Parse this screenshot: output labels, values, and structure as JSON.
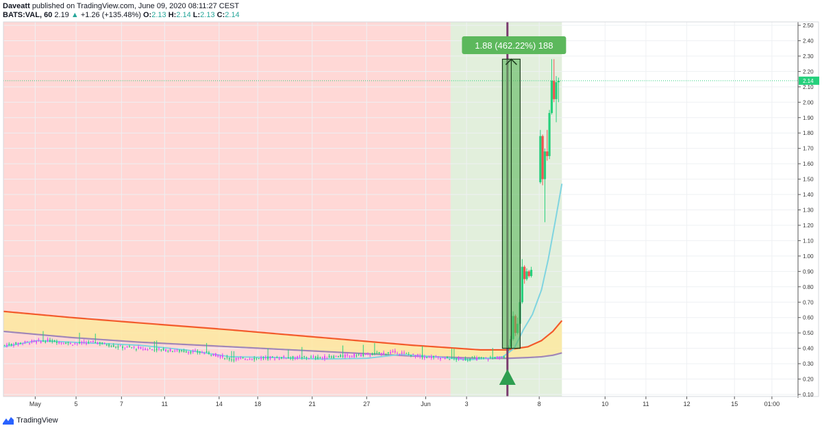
{
  "header": {
    "author": "Daveatt",
    "published": "published on TradingView.com, June 09, 2020 08:11:27 CEST",
    "symbol": "BATS:VAL, 60",
    "last": "2.19",
    "change": "+1.26 (+135.48%)",
    "o_label": "O:",
    "o_value": "2.13",
    "h_label": "H:",
    "h_value": "2.14",
    "l_label": "L:",
    "l_value": "2.13",
    "c_label": "C:",
    "c_value": "2.14"
  },
  "footer": {
    "brand": "TradingView"
  },
  "colors": {
    "red_zone": "#ffd8d6",
    "green_zone": "#e2efdc",
    "upper_band": "#f35a2b",
    "lower_band": "#a086b8",
    "band_fill": "#fde9a0",
    "fast_ma": "#7fd4e0",
    "bull": "#26d07c",
    "bear": "#ef5350",
    "volume_candle": "#e040fb",
    "signal_line": "#7a3b6e",
    "measure_box": "#5cb85c",
    "price_line": "#26d07c"
  },
  "chart_data": {
    "type": "candlestick",
    "ylim": [
      0.1,
      2.5
    ],
    "yticks": [
      "2.50",
      "2.40",
      "2.30",
      "2.20",
      "2.10",
      "2.00",
      "1.90",
      "1.80",
      "1.70",
      "1.60",
      "1.50",
      "1.40",
      "1.30",
      "1.20",
      "1.10",
      "1.00",
      "0.90",
      "0.80",
      "0.70",
      "0.60",
      "0.50",
      "0.40",
      "0.30",
      "0.20",
      "0.10"
    ],
    "xticks": [
      {
        "label": "May",
        "i": 28
      },
      {
        "label": "5",
        "i": 64
      },
      {
        "label": "7",
        "i": 104
      },
      {
        "label": "11",
        "i": 142
      },
      {
        "label": "14",
        "i": 190
      },
      {
        "label": "18",
        "i": 224
      },
      {
        "label": "21",
        "i": 272
      },
      {
        "label": "27",
        "i": 320
      },
      {
        "label": "Jun",
        "i": 372
      },
      {
        "label": "3",
        "i": 408
      },
      {
        "label": "8",
        "i": 472
      },
      {
        "label": "10",
        "i": 530
      },
      {
        "label": "11",
        "i": 566
      },
      {
        "label": "12",
        "i": 602
      },
      {
        "label": "15",
        "i": 644
      },
      {
        "label": "01:00",
        "i": 677
      }
    ],
    "bars_total": 700,
    "red_zone": [
      0,
      394
    ],
    "green_zone": [
      394,
      492
    ],
    "signal_bar": 444,
    "last_price": "2.14",
    "measure": {
      "label": "1.88 (462.22%) 188",
      "from_bar": 442,
      "to_bar": 454,
      "from_price": 0.4,
      "to_price": 2.28
    },
    "upper_band": [
      [
        0,
        0.64
      ],
      [
        60,
        0.6
      ],
      [
        120,
        0.565
      ],
      [
        200,
        0.52
      ],
      [
        280,
        0.47
      ],
      [
        360,
        0.42
      ],
      [
        420,
        0.39
      ],
      [
        444,
        0.39
      ],
      [
        462,
        0.41
      ],
      [
        474,
        0.45
      ],
      [
        484,
        0.51
      ],
      [
        492,
        0.58
      ]
    ],
    "lower_band": [
      [
        0,
        0.51
      ],
      [
        60,
        0.47
      ],
      [
        120,
        0.44
      ],
      [
        200,
        0.41
      ],
      [
        280,
        0.38
      ],
      [
        360,
        0.35
      ],
      [
        420,
        0.335
      ],
      [
        444,
        0.335
      ],
      [
        462,
        0.34
      ],
      [
        474,
        0.345
      ],
      [
        484,
        0.355
      ],
      [
        492,
        0.37
      ]
    ],
    "fast_ma": [
      [
        0,
        0.41
      ],
      [
        30,
        0.45
      ],
      [
        60,
        0.44
      ],
      [
        90,
        0.43
      ],
      [
        120,
        0.42
      ],
      [
        160,
        0.39
      ],
      [
        200,
        0.345
      ],
      [
        240,
        0.34
      ],
      [
        280,
        0.33
      ],
      [
        320,
        0.335
      ],
      [
        350,
        0.36
      ],
      [
        380,
        0.345
      ],
      [
        410,
        0.325
      ],
      [
        440,
        0.345
      ],
      [
        450,
        0.4
      ],
      [
        458,
        0.52
      ],
      [
        466,
        0.62
      ],
      [
        474,
        0.78
      ],
      [
        480,
        0.98
      ],
      [
        486,
        1.22
      ],
      [
        492,
        1.47
      ]
    ],
    "ohlc_segments": [
      {
        "from": 0,
        "to": 440,
        "path": [
          [
            0,
            0.42
          ],
          [
            20,
            0.44
          ],
          [
            40,
            0.45
          ],
          [
            60,
            0.43
          ],
          [
            80,
            0.44
          ],
          [
            100,
            0.41
          ],
          [
            140,
            0.39
          ],
          [
            180,
            0.37
          ],
          [
            200,
            0.33
          ],
          [
            240,
            0.34
          ],
          [
            280,
            0.34
          ],
          [
            320,
            0.36
          ],
          [
            345,
            0.375
          ],
          [
            365,
            0.35
          ],
          [
            400,
            0.33
          ],
          [
            440,
            0.34
          ]
        ]
      }
    ],
    "candles_late": [
      {
        "i": 445,
        "o": 0.4,
        "h": 0.42,
        "l": 0.38,
        "c": 0.41
      },
      {
        "i": 447,
        "o": 0.41,
        "h": 0.48,
        "l": 0.4,
        "c": 0.46
      },
      {
        "i": 449,
        "o": 0.46,
        "h": 0.64,
        "l": 0.45,
        "c": 0.61
      },
      {
        "i": 451,
        "o": 0.61,
        "h": 0.62,
        "l": 0.48,
        "c": 0.5
      },
      {
        "i": 453,
        "o": 0.5,
        "h": 0.6,
        "l": 0.49,
        "c": 0.56
      },
      {
        "i": 455,
        "o": 0.56,
        "h": 0.72,
        "l": 0.55,
        "c": 0.7
      },
      {
        "i": 457,
        "o": 0.7,
        "h": 0.98,
        "l": 0.69,
        "c": 0.93
      },
      {
        "i": 459,
        "o": 0.93,
        "h": 0.94,
        "l": 0.82,
        "c": 0.85
      },
      {
        "i": 461,
        "o": 0.85,
        "h": 0.92,
        "l": 0.84,
        "c": 0.9
      },
      {
        "i": 463,
        "o": 0.9,
        "h": 0.91,
        "l": 0.86,
        "c": 0.87
      },
      {
        "i": 465,
        "o": 0.87,
        "h": 0.93,
        "l": 0.86,
        "c": 0.91
      },
      {
        "i": 473,
        "o": 1.48,
        "h": 1.82,
        "l": 1.47,
        "c": 1.78
      },
      {
        "i": 475,
        "o": 1.78,
        "h": 1.79,
        "l": 1.46,
        "c": 1.5
      },
      {
        "i": 477,
        "o": 1.5,
        "h": 1.7,
        "l": 1.22,
        "c": 1.68
      },
      {
        "i": 479,
        "o": 1.68,
        "h": 1.82,
        "l": 1.62,
        "c": 1.65
      },
      {
        "i": 481,
        "o": 1.65,
        "h": 1.95,
        "l": 1.63,
        "c": 1.93
      },
      {
        "i": 483,
        "o": 1.93,
        "h": 2.28,
        "l": 1.92,
        "c": 2.14
      },
      {
        "i": 485,
        "o": 2.14,
        "h": 2.28,
        "l": 2.0,
        "c": 2.02
      },
      {
        "i": 487,
        "o": 2.02,
        "h": 2.17,
        "l": 1.87,
        "c": 2.13
      },
      {
        "i": 489,
        "o": 2.13,
        "h": 2.16,
        "l": 2.0,
        "c": 2.14
      }
    ]
  }
}
